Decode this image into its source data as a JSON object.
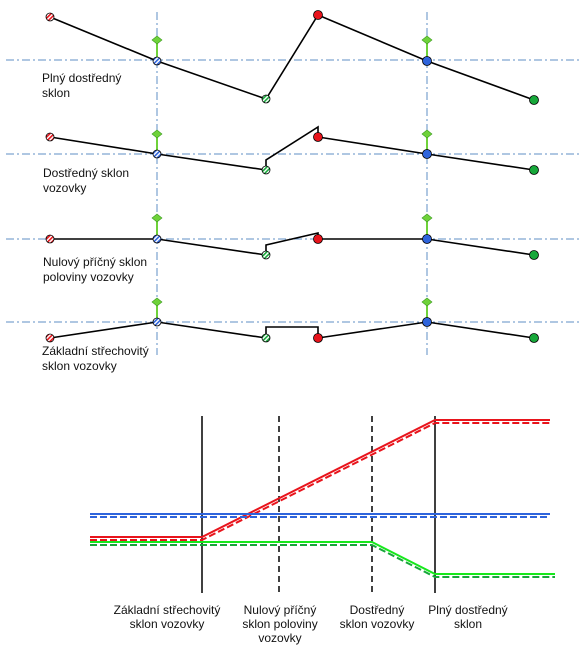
{
  "colors": {
    "red": "#e8141c",
    "blue": "#2e64dc",
    "green": "#17a83a",
    "stem_green": "#6fd23a",
    "axis_dashdot": "#5f8fc5",
    "profile_line": "#000000"
  },
  "profiles": [
    {
      "label_lines": [
        "Plný dostředný",
        "sklon"
      ]
    },
    {
      "label_lines": [
        "Dostředný sklon",
        "vozovky"
      ]
    },
    {
      "label_lines": [
        "Nulový příčný sklon",
        "poloviny vozovky"
      ]
    },
    {
      "label_lines": [
        "Základní střechovitý",
        "sklon vozovky"
      ]
    }
  ],
  "bottom_labels": [
    {
      "lines": [
        "Základní střechovitý",
        "sklon vozovky"
      ]
    },
    {
      "lines": [
        "Nulový příčný",
        "sklon poloviny",
        "vozovky"
      ]
    },
    {
      "lines": [
        "Dostředný",
        "sklon vozovky"
      ]
    },
    {
      "lines": [
        "Plný dostředný",
        "sklon"
      ]
    }
  ]
}
